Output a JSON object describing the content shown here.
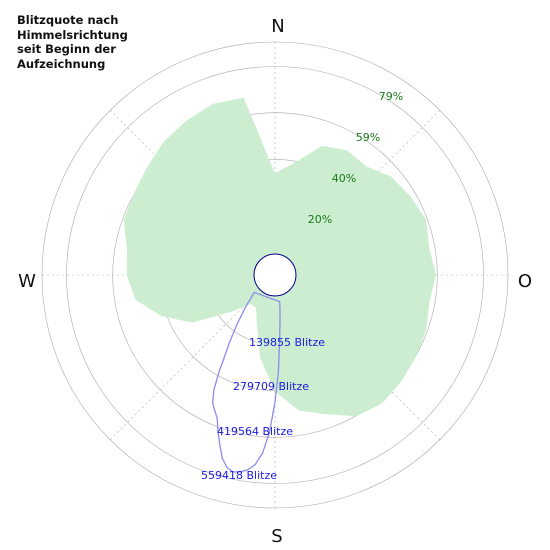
{
  "title_lines": [
    "Blitzquote nach",
    "Himmelsrichtung",
    "seit Beginn der",
    "Aufzeichnung"
  ],
  "chart_data": {
    "type": "polar",
    "title": "Blitzquote nach Himmelsrichtung seit Beginn der Aufzeichnung",
    "directions": [
      "N",
      "O",
      "S",
      "W"
    ],
    "percent_ticks": [
      20,
      40,
      59,
      79
    ],
    "count_ticks": [
      139855,
      279709,
      419564,
      559418
    ],
    "count_suffix": "Blitze",
    "colors": {
      "quota_fill": "#cdedd0",
      "count_line": "#8c8cec",
      "grid": "#aaaaaa",
      "center_stroke": "#00008b"
    },
    "series": [
      {
        "kind": "quota_percent",
        "angles_deg": [
          0,
          10,
          20,
          30,
          40,
          50,
          60,
          70,
          80,
          90,
          100,
          110,
          120,
          130,
          140,
          150,
          160,
          170,
          180,
          190,
          200,
          210,
          220,
          230,
          240,
          250,
          260,
          270,
          280,
          290,
          300,
          310,
          320,
          330,
          340,
          350
        ],
        "values": [
          38,
          44,
          55,
          58,
          57,
          62,
          64,
          66,
          64,
          66,
          64,
          66,
          67,
          68,
          69,
          67,
          60,
          55,
          45,
          30,
          15,
          8,
          8,
          17,
          35,
          47,
          57,
          60,
          61,
          66,
          67,
          69,
          72,
          74,
          76,
          75
        ]
      },
      {
        "kind": "lightning_count",
        "angles_deg": [
          170,
          172,
          174,
          176,
          178,
          180,
          182,
          184,
          186,
          188,
          190,
          192,
          194,
          196,
          198,
          200,
          202,
          204,
          206,
          208,
          210,
          212,
          214,
          216,
          218,
          220,
          222,
          224,
          226,
          228,
          230
        ],
        "values": [
          20000,
          50000,
          90000,
          150000,
          250000,
          350000,
          450000,
          520000,
          560000,
          580000,
          590000,
          595000,
          585000,
          560000,
          520000,
          480000,
          440000,
          420000,
          400000,
          360000,
          300000,
          240000,
          200000,
          160000,
          130000,
          100000,
          80000,
          60000,
          40000,
          30000,
          20000
        ]
      }
    ]
  }
}
